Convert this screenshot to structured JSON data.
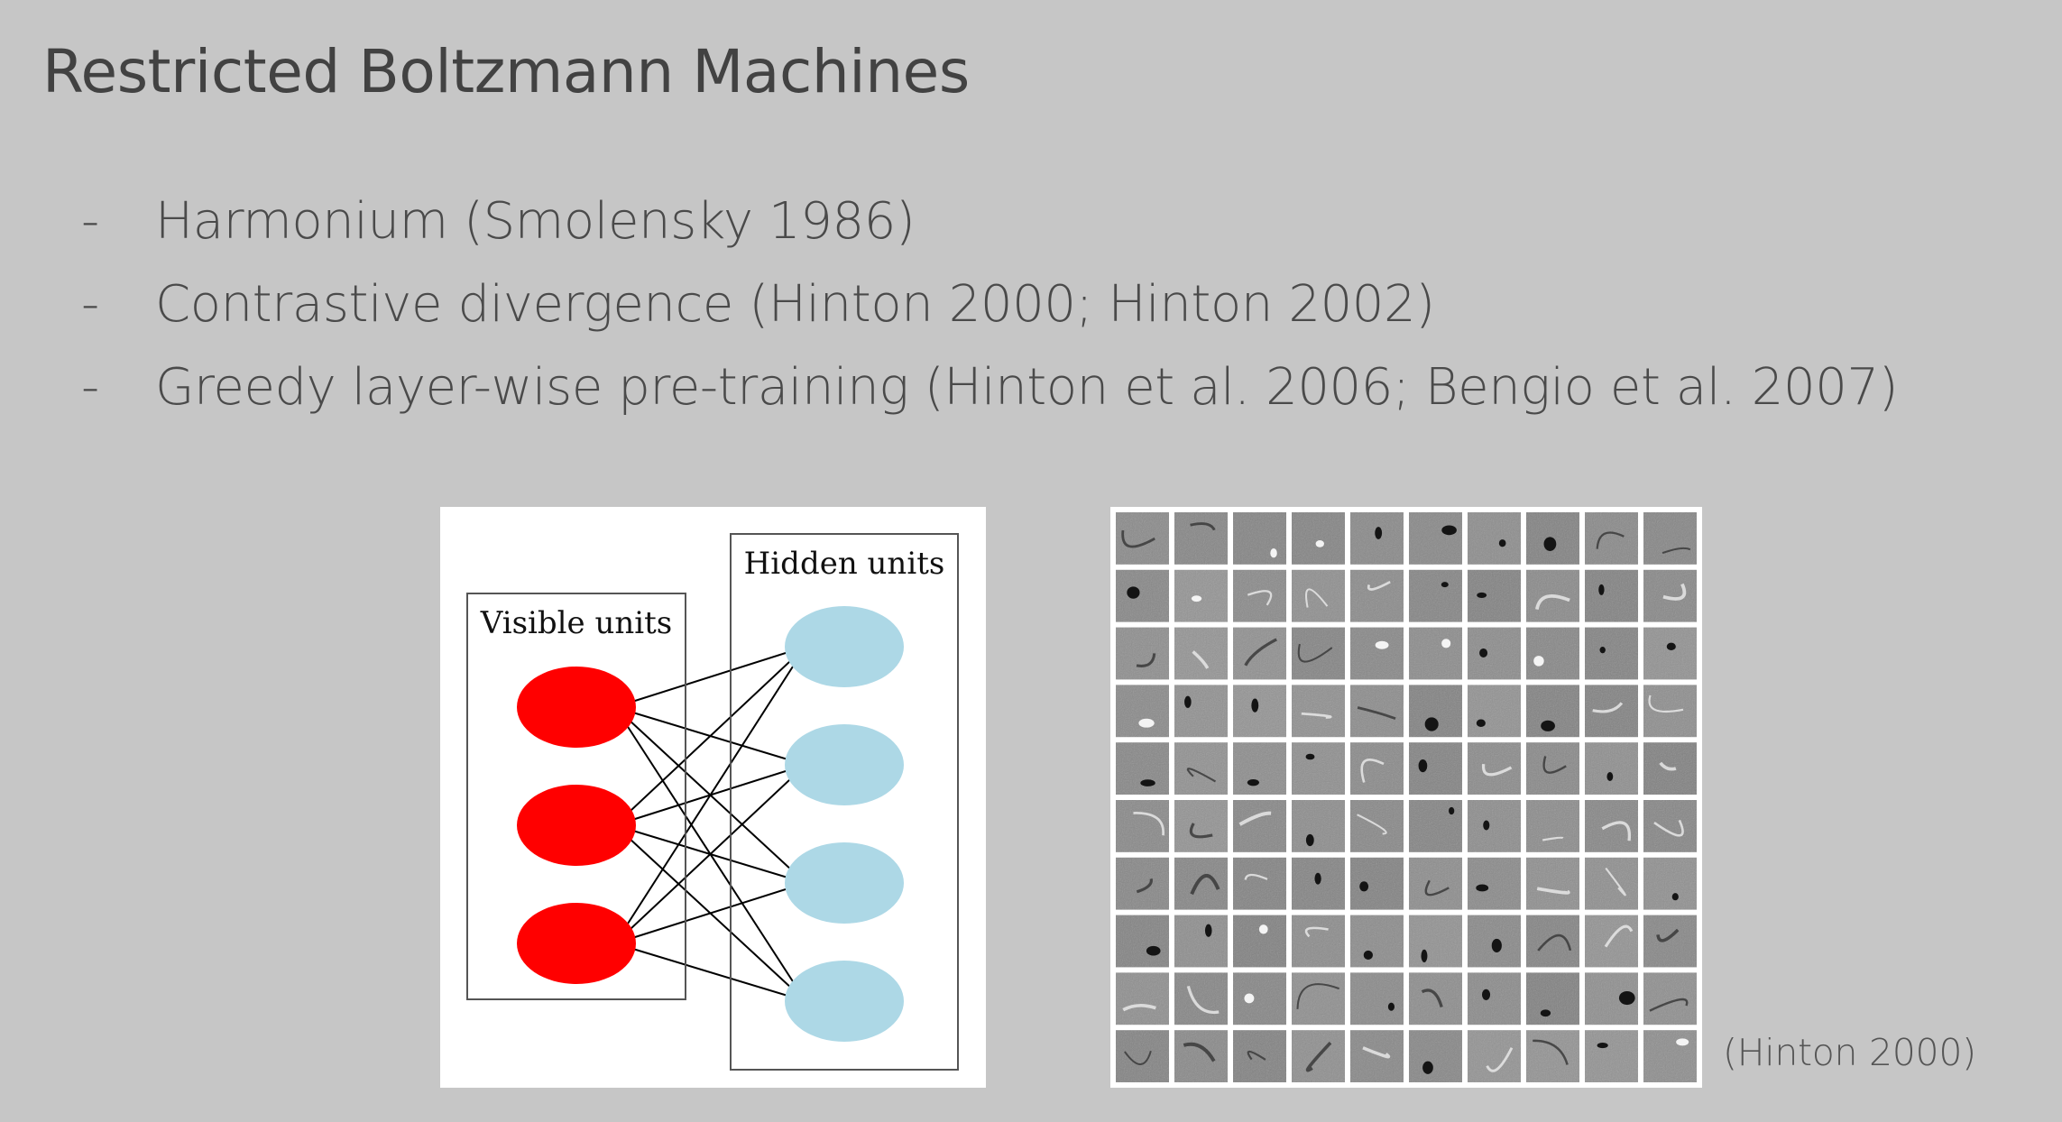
{
  "slide": {
    "title": "Restricted Boltzmann Machines",
    "bullets": [
      {
        "marker": "-",
        "text": "Harmonium (Smolensky 1986)"
      },
      {
        "marker": "-",
        "text": "Contrastive divergence (Hinton 2000; Hinton 2002)"
      },
      {
        "marker": "-",
        "text": "Greedy layer-wise pre-training  (Hinton et al. 2006; Bengio et al. 2007)"
      }
    ],
    "citation": "(Hinton 2000)"
  },
  "diagram": {
    "visible_label": "Visible units",
    "hidden_label": "Hidden units",
    "visible_count": 3,
    "hidden_count": 4,
    "visible_color": "#ff0000",
    "hidden_color": "#add8e6",
    "edge_color": "#000000",
    "fully_connected_bipartite": true
  },
  "filters": {
    "rows": 10,
    "cols": 10,
    "tile_color": "#8a8a8a",
    "border_color": "#ffffff"
  }
}
